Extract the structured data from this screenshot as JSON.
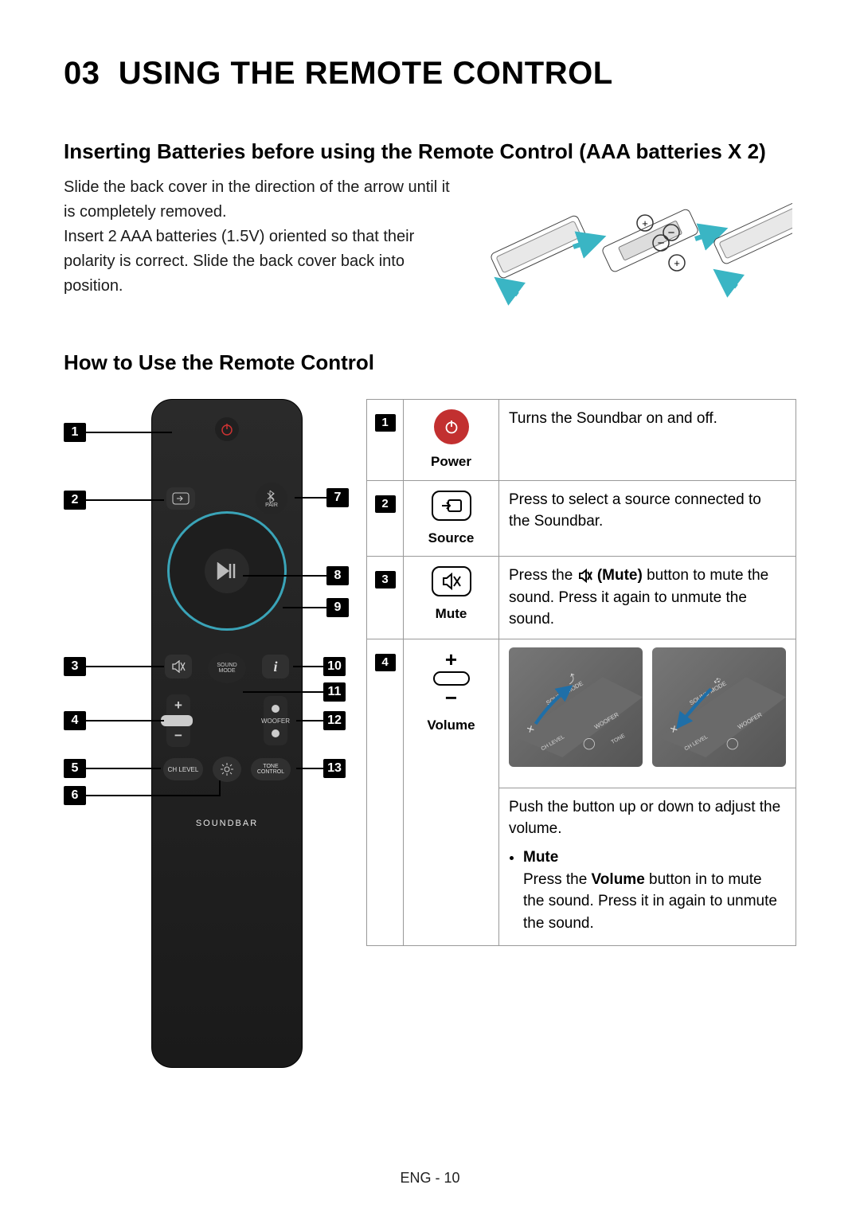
{
  "section": {
    "number": "03",
    "title": "USING THE REMOTE CONTROL"
  },
  "inserting": {
    "title": "Inserting Batteries before using the Remote Control (AAA batteries X 2)",
    "text1": "Slide the back cover in the direction of the arrow until it is completely removed.",
    "text2": "Insert 2 AAA batteries (1.5V) oriented so that their polarity is correct. Slide the back cover back into position."
  },
  "howto_title": "How to Use the Remote Control",
  "remote": {
    "soundbar_label": "SOUNDBAR",
    "pair_label": "PAIR",
    "sound_mode_label": "SOUND MODE",
    "woofer_label": "WOOFER",
    "chlevel_label": "CH LEVEL",
    "tone_label": "TONE CONTROL",
    "callouts_left": [
      "1",
      "2",
      "3",
      "4",
      "5",
      "6"
    ],
    "callouts_right": [
      "7",
      "8",
      "9",
      "10",
      "11",
      "12",
      "13"
    ]
  },
  "functions": [
    {
      "num": "1",
      "label": "Power",
      "icon": "power",
      "icon_color": "#c33",
      "desc_html": "Turns the Soundbar on and off."
    },
    {
      "num": "2",
      "label": "Source",
      "icon": "source",
      "icon_color": "#000",
      "desc_html": "Press to select a source connected to the Soundbar."
    },
    {
      "num": "3",
      "label": "Mute",
      "icon": "mute",
      "icon_color": "#000",
      "desc_html": "Press the <svg style='display:inline;vertical-align:middle' width='20' height='18'><path d='M3 6v6h3l5 4V2L6 6H3zM13 4l5 10M18 4l-5 10' stroke='#000' stroke-width='2' fill='none'/></svg> <b>(Mute)</b> button to mute the sound. Press it again to unmute the sound."
    },
    {
      "num": "4",
      "label": "Volume",
      "icon": "volume",
      "icon_color": "#000",
      "desc_html": ""
    }
  ],
  "volume_desc": {
    "line1": "Push the button up or down to adjust the volume.",
    "bullet_title": "Mute",
    "bullet_text_pre": "Press the ",
    "bullet_bold": "Volume",
    "bullet_text_post": " button in to mute the sound. Press it in again to unmute the sound."
  },
  "footer": "ENG - 10",
  "colors": {
    "text": "#000000",
    "remote_body": "#1f1f1f",
    "border": "#999999",
    "power_red": "#c23030",
    "accent_circle": "#3aa4b8"
  }
}
